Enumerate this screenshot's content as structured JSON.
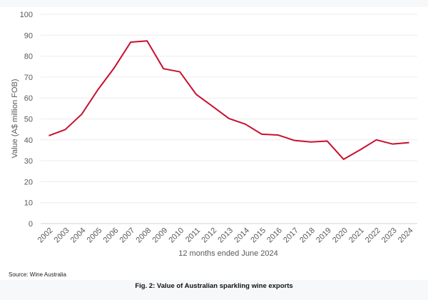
{
  "chart_data": {
    "type": "line",
    "title": "",
    "xlabel": "12 months ended June 2024",
    "ylabel": "Value (A$ million FOB)",
    "ylim": [
      0,
      100
    ],
    "yticks": [
      "0",
      "10",
      "20",
      "30",
      "40",
      "50",
      "60",
      "70",
      "80",
      "90",
      "100"
    ],
    "grid": true,
    "legend": "none",
    "categories": [
      "2002",
      "2003",
      "2004",
      "2005",
      "2006",
      "2007",
      "2008",
      "2009",
      "2010",
      "2011",
      "2012",
      "2013",
      "2014",
      "2015",
      "2016",
      "2017",
      "2018",
      "2019",
      "2020",
      "2021",
      "2022",
      "2023",
      "2024"
    ],
    "series": [
      {
        "name": "Sparkling wine exports value",
        "color": "#C8102E",
        "values": [
          42.0,
          44.9,
          52.2,
          64.0,
          74.5,
          86.7,
          87.3,
          74.0,
          72.5,
          61.7,
          56.0,
          50.2,
          47.5,
          42.7,
          42.3,
          39.7,
          39.0,
          39.4,
          30.7,
          35.2,
          40.0,
          38.0,
          38.7
        ]
      }
    ]
  },
  "footer": {
    "source": "Source: Wine Australia",
    "caption": "Fig. 2: Value of Australian sparkling wine exports"
  }
}
